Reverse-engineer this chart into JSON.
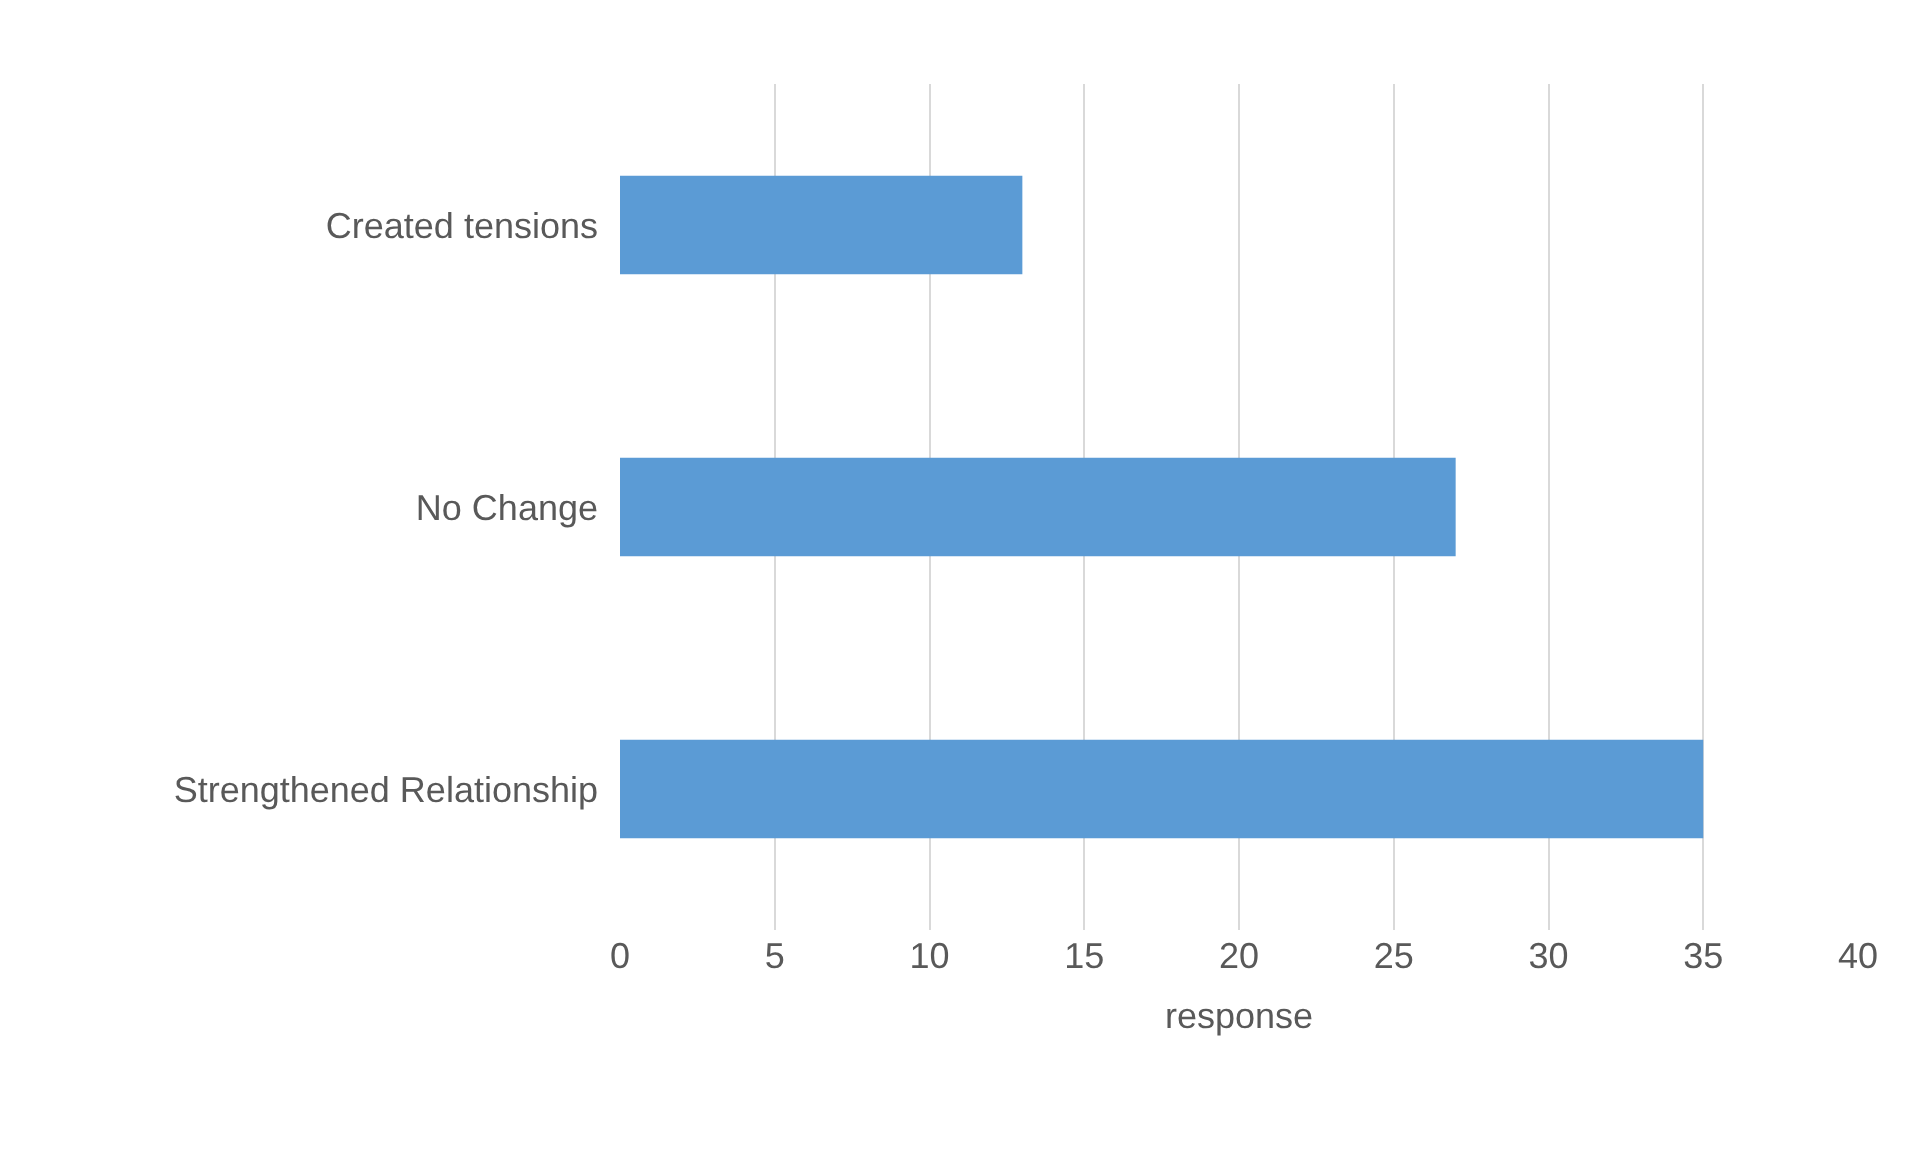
{
  "chart_data": {
    "type": "bar",
    "orientation": "horizontal",
    "categories": [
      "Created tensions",
      "No Change",
      "Strengthened Relationship"
    ],
    "values": [
      13,
      27,
      35
    ],
    "color": "#5b9bd5",
    "xlabel": "response",
    "xlim": [
      0,
      40
    ],
    "xticks": [
      0,
      5,
      10,
      15,
      20,
      25,
      30,
      35,
      40
    ],
    "grid": "x"
  }
}
